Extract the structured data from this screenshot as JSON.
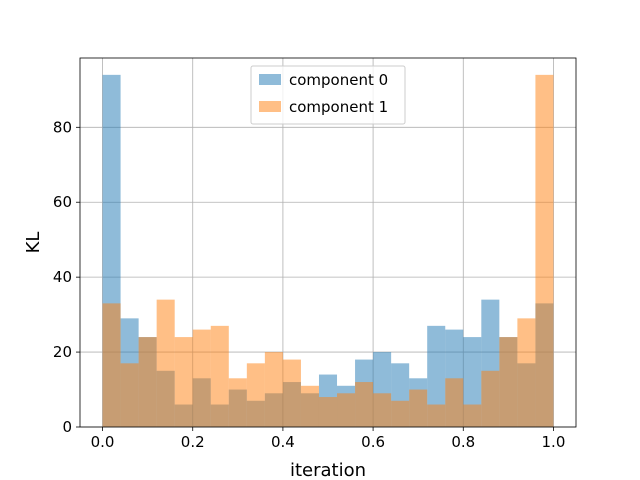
{
  "chart_data": {
    "type": "histogram",
    "xlabel": "iteration",
    "ylabel": "KL",
    "xlim": [
      -0.05,
      1.05
    ],
    "ylim": [
      0,
      98.5
    ],
    "xticks": [
      "0.0",
      "0.2",
      "0.4",
      "0.6",
      "0.8",
      "1.0"
    ],
    "xtick_values": [
      0.0,
      0.2,
      0.4,
      0.6,
      0.8,
      1.0
    ],
    "yticks": [
      "0",
      "20",
      "40",
      "60",
      "80"
    ],
    "ytick_values": [
      0,
      20,
      40,
      60,
      80
    ],
    "grid": true,
    "legend_position": "upper center",
    "bins": 25,
    "bin_range": [
      0,
      1
    ],
    "series": [
      {
        "name": "component 0",
        "color": "#1f77b4",
        "values": [
          94,
          29,
          24,
          15,
          6,
          13,
          6,
          10,
          7,
          9,
          12,
          9,
          14,
          11,
          18,
          20,
          17,
          13,
          27,
          26,
          24,
          34,
          24,
          17,
          33
        ]
      },
      {
        "name": "component 1",
        "color": "#ff7f0e",
        "values": [
          33,
          17,
          24,
          34,
          24,
          26,
          27,
          13,
          17,
          20,
          18,
          11,
          8,
          9,
          12,
          9,
          7,
          10,
          6,
          13,
          6,
          15,
          24,
          29,
          94
        ]
      }
    ]
  }
}
